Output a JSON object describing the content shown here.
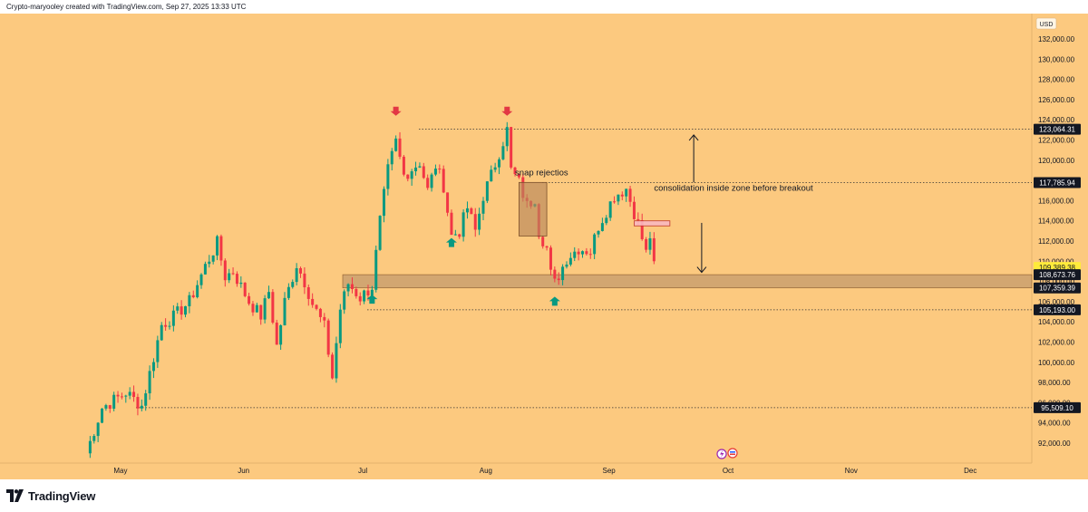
{
  "header": {
    "attribution": "Crypto-maryooley created with TradingView.com, Sep 27, 2025 13:33 UTC"
  },
  "footer": {
    "brand": "TradingView"
  },
  "colors": {
    "background": "#fcc97f",
    "up": "#089981",
    "down": "#f23645",
    "zone": "#c49a6c",
    "text": "#131722"
  },
  "chart_data": {
    "type": "candlestick",
    "currency": "USD",
    "x_ticks": [
      "May",
      "Jun",
      "Jul",
      "Aug",
      "Sep",
      "Oct",
      "Nov",
      "Dec"
    ],
    "y_ticks": [
      "92,000.00",
      "94,000.00",
      "96,000.00",
      "98,000.00",
      "100,000.00",
      "102,000.00",
      "104,000.00",
      "106,000.00",
      "108,000.00",
      "110,000.00",
      "112,000.00",
      "114,000.00",
      "116,000.00",
      "118,000.00",
      "120,000.00",
      "122,000.00",
      "124,000.00",
      "126,000.00",
      "128,000.00",
      "130,000.00",
      "132,000.00"
    ],
    "ylim": [
      90000,
      134000
    ],
    "price_labels": [
      {
        "text": "123,064.31",
        "value": 123064.31,
        "style": "dark"
      },
      {
        "text": "117,785.94",
        "value": 117785.94,
        "style": "dark"
      },
      {
        "text": "109,389.38",
        "value": 109389.38,
        "style": "current"
      },
      {
        "text": "108,673.76",
        "value": 108673.76,
        "style": "dark"
      },
      {
        "text": "107,359.39",
        "value": 107359.39,
        "style": "dark"
      },
      {
        "text": "105,193.00",
        "value": 105193.0,
        "style": "dark"
      },
      {
        "text": "95,509.10",
        "value": 95509.1,
        "style": "dark"
      }
    ],
    "horizontal_levels": [
      123064.31,
      117785.94,
      105193.0,
      95509.1
    ],
    "zone": {
      "top": 108673.76,
      "bottom": 107359.39
    },
    "annotations": [
      {
        "text": "snap rejectios",
        "x_day": 108,
        "y": 118500
      },
      {
        "text": "consolidation inside zone before breakout",
        "x_day": 143,
        "y": 117000
      }
    ],
    "markers": [
      {
        "kind": "down-arrow",
        "day": 78,
        "y": 124400
      },
      {
        "kind": "down-arrow",
        "day": 106,
        "y": 124400
      },
      {
        "kind": "up-arrow",
        "day": 72,
        "y": 106700
      },
      {
        "kind": "up-arrow",
        "day": 92,
        "y": 112300
      },
      {
        "kind": "up-arrow",
        "day": 118,
        "y": 106500
      }
    ],
    "key_path": [
      [
        0,
        91000
      ],
      [
        4,
        95500
      ],
      [
        10,
        97000
      ],
      [
        14,
        95700
      ],
      [
        17,
        100500
      ],
      [
        19,
        103700
      ],
      [
        22,
        104500
      ],
      [
        26,
        106000
      ],
      [
        30,
        109500
      ],
      [
        33,
        111800
      ],
      [
        35,
        108500
      ],
      [
        37,
        109000
      ],
      [
        41,
        106000
      ],
      [
        44,
        104600
      ],
      [
        46,
        107000
      ],
      [
        48,
        101600
      ],
      [
        50,
        106000
      ],
      [
        53,
        109700
      ],
      [
        55,
        108000
      ],
      [
        57,
        105800
      ],
      [
        60,
        103500
      ],
      [
        62,
        98500
      ],
      [
        64,
        105300
      ],
      [
        66,
        107800
      ],
      [
        69,
        106400
      ],
      [
        72,
        107500
      ],
      [
        74,
        114000
      ],
      [
        76,
        119000
      ],
      [
        78,
        121800
      ],
      [
        80,
        118500
      ],
      [
        84,
        119800
      ],
      [
        86,
        117000
      ],
      [
        88,
        119500
      ],
      [
        90,
        117500
      ],
      [
        92,
        112500
      ],
      [
        94,
        113000
      ],
      [
        96,
        115300
      ],
      [
        98,
        113000
      ],
      [
        100,
        116500
      ],
      [
        102,
        118500
      ],
      [
        106,
        123000
      ],
      [
        107,
        119000
      ],
      [
        109,
        117800
      ],
      [
        111,
        115500
      ],
      [
        113,
        116300
      ],
      [
        114,
        113000
      ],
      [
        116,
        111300
      ],
      [
        117,
        108700
      ],
      [
        118,
        107800
      ],
      [
        121,
        110300
      ],
      [
        124,
        111300
      ],
      [
        127,
        111000
      ],
      [
        129,
        113500
      ],
      [
        133,
        116500
      ],
      [
        136,
        117200
      ],
      [
        137,
        116000
      ],
      [
        139,
        113700
      ],
      [
        141,
        110800
      ],
      [
        142,
        112500
      ],
      [
        143,
        109400
      ]
    ],
    "tools": [
      {
        "kind": "rect",
        "d1": 109,
        "d2": 116,
        "y1": 112500,
        "y2": 117800
      },
      {
        "kind": "rect",
        "d1": 138,
        "d2": 147,
        "y1": 113500,
        "y2": 114000
      },
      {
        "kind": "vline-arrow-up",
        "d": 153,
        "y1": 117800,
        "y2": 122500
      },
      {
        "kind": "vline-arrow-down",
        "d": 155,
        "y1": 113800,
        "y2": 108900
      }
    ]
  }
}
